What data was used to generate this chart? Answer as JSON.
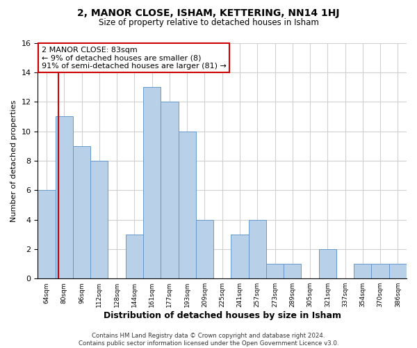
{
  "title": "2, MANOR CLOSE, ISHAM, KETTERING, NN14 1HJ",
  "subtitle": "Size of property relative to detached houses in Isham",
  "xlabel": "Distribution of detached houses by size in Isham",
  "ylabel": "Number of detached properties",
  "bin_labels": [
    "64sqm",
    "80sqm",
    "96sqm",
    "112sqm",
    "128sqm",
    "144sqm",
    "161sqm",
    "177sqm",
    "193sqm",
    "209sqm",
    "225sqm",
    "241sqm",
    "257sqm",
    "273sqm",
    "289sqm",
    "305sqm",
    "321sqm",
    "337sqm",
    "354sqm",
    "370sqm",
    "386sqm"
  ],
  "counts": [
    6,
    11,
    9,
    8,
    0,
    3,
    13,
    12,
    10,
    4,
    0,
    3,
    4,
    1,
    1,
    0,
    2,
    0,
    1,
    1,
    1
  ],
  "bar_color": "#b8d0e8",
  "bar_edge_color": "#6699cc",
  "property_line_color": "#cc0000",
  "property_line_index": 1.1875,
  "ylim": [
    0,
    16
  ],
  "yticks": [
    0,
    2,
    4,
    6,
    8,
    10,
    12,
    14,
    16
  ],
  "annotation_title": "2 MANOR CLOSE: 83sqm",
  "annotation_line1": "← 9% of detached houses are smaller (8)",
  "annotation_line2": "91% of semi-detached houses are larger (81) →",
  "annotation_box_color": "#ffffff",
  "annotation_box_edgecolor": "#cc0000",
  "footer_line1": "Contains HM Land Registry data © Crown copyright and database right 2024.",
  "footer_line2": "Contains public sector information licensed under the Open Government Licence v3.0.",
  "background_color": "#ffffff",
  "grid_color": "#d0d0d0"
}
